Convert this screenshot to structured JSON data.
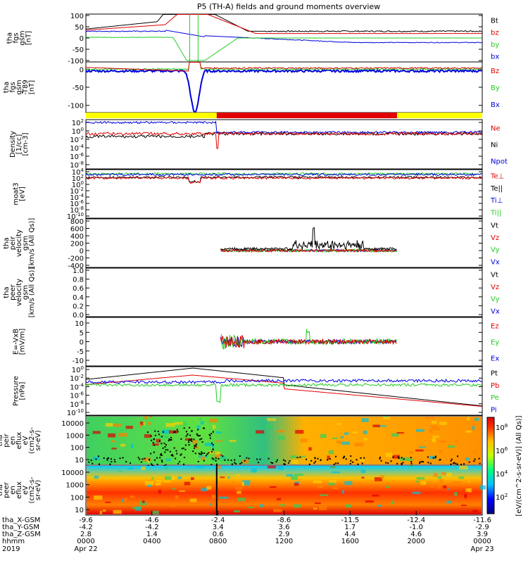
{
  "title": "P5 (TH-A) fields and ground moments overview",
  "colors": {
    "black": "#000000",
    "red": "#e00000",
    "green": "#22cc22",
    "blue": "#0000dd",
    "yellow": "#ffff00"
  },
  "chart_data": [
    {
      "type": "line",
      "ylabel": [
        "tha",
        "fgs",
        "gsm",
        "[nT]"
      ],
      "ylim": [
        -100,
        100
      ],
      "yticks": [
        "100",
        "50",
        "0",
        "-50",
        "-100"
      ],
      "series": [
        {
          "name": "Bt",
          "color": "#000000"
        },
        {
          "name": "bz",
          "color": "#e00000"
        },
        {
          "name": "by",
          "color": "#22cc22"
        },
        {
          "name": "bx",
          "color": "#0000dd"
        }
      ]
    },
    {
      "type": "line",
      "ylabel": [
        "tha",
        "fgs",
        "gsm",
        "-T89",
        "[nT]"
      ],
      "ylim": [
        -120,
        20
      ],
      "yticks": [
        "0",
        "-50",
        "-100"
      ],
      "series": [
        {
          "name": "Bz",
          "color": "#e00000"
        },
        {
          "name": "By",
          "color": "#22cc22"
        },
        {
          "name": "Bx",
          "color": "#0000dd"
        }
      ]
    },
    {
      "type": "bar",
      "role": "mode bar",
      "segments": [
        {
          "from": "0000",
          "to": "0730",
          "color": "#ffff00"
        },
        {
          "from": "0730",
          "to": "1830",
          "color": "#e00000"
        },
        {
          "from": "1830",
          "to": "0000",
          "color": "#ffff00"
        }
      ]
    },
    {
      "type": "line",
      "ylabel": [
        "Density",
        "[1/cc]",
        "[cm-3]"
      ],
      "yscale": "log",
      "yticks": [
        "10^2",
        "10^0",
        "10^-2",
        "10^-4",
        "10^-6",
        "10^-8"
      ],
      "series": [
        {
          "name": "Ne",
          "color": "#e00000"
        },
        {
          "name": "Ni",
          "color": "#000000"
        },
        {
          "name": "Npot",
          "color": "#0000dd"
        }
      ]
    },
    {
      "type": "line",
      "ylabel": [
        "moat3",
        "[eV]"
      ],
      "yscale": "log",
      "yticks": [
        "10^4",
        "10^2",
        "10^0",
        "10^-2",
        "10^-4",
        "10^-6",
        "10^-8",
        "10^-10"
      ],
      "series": [
        {
          "name": "Te⊥",
          "color": "#e00000"
        },
        {
          "name": "Te||",
          "color": "#000000"
        },
        {
          "name": "Ti⊥",
          "color": "#0000dd"
        },
        {
          "name": "Ti||",
          "color": "#22cc22"
        }
      ]
    },
    {
      "type": "line",
      "ylabel": [
        "tha",
        "peir",
        "velocity",
        "gsm",
        "[km/s (All Qs)]"
      ],
      "ylim": [
        -400,
        800
      ],
      "yticks": [
        "800",
        "600",
        "400",
        "200",
        "0",
        "-200",
        "-400"
      ],
      "series": [
        {
          "name": "Vt",
          "color": "#000000"
        },
        {
          "name": "Vz",
          "color": "#e00000"
        },
        {
          "name": "Vy",
          "color": "#22cc22"
        },
        {
          "name": "Vx",
          "color": "#0000dd"
        }
      ]
    },
    {
      "type": "line",
      "ylabel": [
        "tha",
        "peer",
        "velocity",
        "gsm",
        "[km/s (All Qs)]"
      ],
      "ylim": [
        0,
        1
      ],
      "yticks": [
        "1.0",
        "0.8",
        "0.6",
        "0.4",
        "0.2",
        "0.0"
      ],
      "series": [
        {
          "name": "Vt",
          "color": "#000000"
        },
        {
          "name": "Vz",
          "color": "#e00000"
        },
        {
          "name": "Vy",
          "color": "#22cc22"
        },
        {
          "name": "Vx",
          "color": "#0000dd"
        }
      ]
    },
    {
      "type": "line",
      "ylabel": [
        "E=-VxB",
        "[mV/m]"
      ],
      "ylim": [
        -10,
        10
      ],
      "yticks": [
        "10",
        "5",
        "0",
        "-5",
        "-10"
      ],
      "series": [
        {
          "name": "Ez",
          "color": "#e00000"
        },
        {
          "name": "Ey",
          "color": "#22cc22"
        },
        {
          "name": "Ex",
          "color": "#0000dd"
        }
      ]
    },
    {
      "type": "line",
      "ylabel": [
        "Pressure",
        "[nPa]"
      ],
      "yscale": "log",
      "yticks": [
        "10^0",
        "10^-2",
        "10^-4",
        "10^-6",
        "10^-8",
        "10^-10"
      ],
      "series": [
        {
          "name": "Pt",
          "color": "#000000"
        },
        {
          "name": "Pb",
          "color": "#e00000"
        },
        {
          "name": "Pe",
          "color": "#22cc22"
        },
        {
          "name": "Pi",
          "color": "#0000dd"
        }
      ]
    },
    {
      "type": "heatmap",
      "ylabel": [
        "tha",
        "peir",
        "en",
        "eflux",
        "eV",
        "(cm2-s-",
        "sr-eV)"
      ],
      "yscale": "log",
      "yticks": [
        "10000",
        "1000",
        "100",
        "10"
      ]
    },
    {
      "type": "heatmap",
      "ylabel": [
        "tha",
        "peer",
        "en",
        "eflux",
        "eV",
        "(cm2-s-",
        "sr-eV)"
      ],
      "yscale": "log",
      "yticks": [
        "10000",
        "1000",
        "100",
        "10"
      ]
    }
  ],
  "colorbar": {
    "label": "[eV/(cm^2-s-sr-eV)] (All Qs)]",
    "ticks": [
      "10^8",
      "10^6",
      "10^4",
      "10^2"
    ]
  },
  "x_axis": {
    "row_labels": [
      "tha_X-GSM",
      "tha_Y-GSM",
      "tha_Z-GSM",
      "hhmm",
      "2019"
    ],
    "ticks": [
      {
        "X": "-9.6",
        "Y": "-4.2",
        "Z": "2.8",
        "hhmm": "0000",
        "date": "Apr 22"
      },
      {
        "X": "-4.6",
        "Y": "-4.2",
        "Z": "1.4",
        "hhmm": "0400",
        "date": ""
      },
      {
        "X": "-2.4",
        "Y": "3.4",
        "Z": "0.6",
        "hhmm": "0800",
        "date": ""
      },
      {
        "X": "-8.6",
        "Y": "3.6",
        "Z": "2.9",
        "hhmm": "1200",
        "date": ""
      },
      {
        "X": "-11.5",
        "Y": "1.7",
        "Z": "4.4",
        "hhmm": "1600",
        "date": ""
      },
      {
        "X": "-12.4",
        "Y": "-1.0",
        "Z": "4.6",
        "hhmm": "2000",
        "date": ""
      },
      {
        "X": "-11.6",
        "Y": "-2.9",
        "Z": "3.9",
        "hhmm": "0000",
        "date": "Apr 23"
      }
    ]
  }
}
